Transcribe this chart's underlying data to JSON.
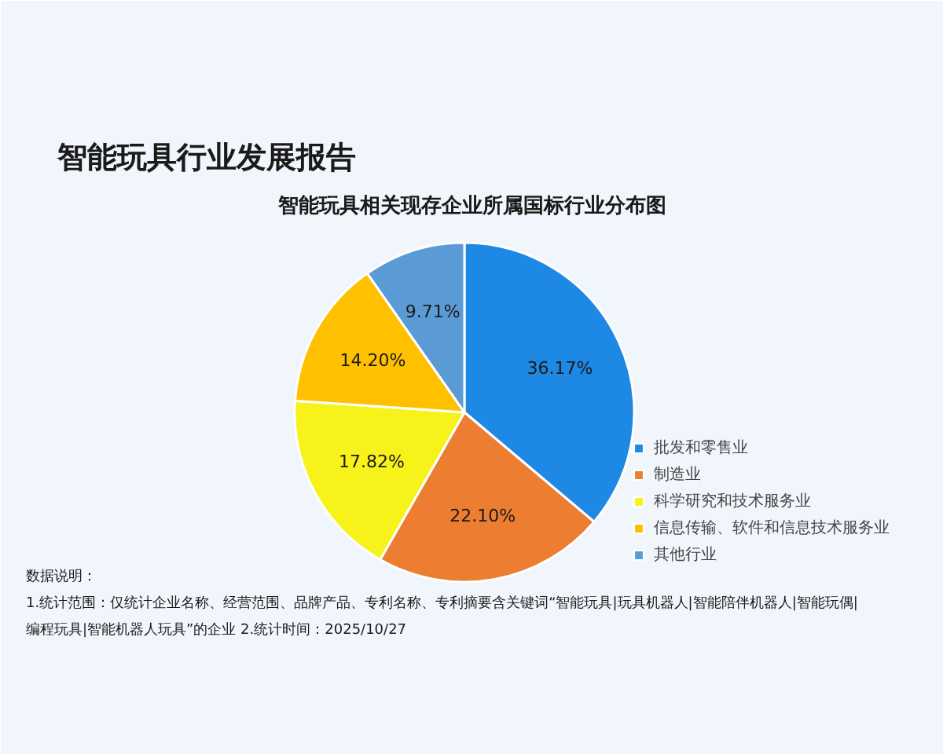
{
  "chart_data": {
    "type": "pie",
    "title": "智能玩具行业发展报告",
    "subtitle": "智能玩具相关现存企业所属国标行业分布图",
    "categories": [
      "批发和零售业",
      "制造业",
      "科学研究和技术服务业",
      "信息传输、软件和信息技术服务业",
      "其他行业"
    ],
    "values": [
      36.17,
      22.1,
      17.82,
      14.2,
      9.71
    ],
    "value_labels": [
      "36.17%",
      "22.10%",
      "17.82%",
      "14.20%",
      "9.71%"
    ],
    "colors": [
      "#1e88e5",
      "#ed7d31",
      "#f7f21a",
      "#ffc000",
      "#5b9bd5"
    ],
    "legend": "right",
    "annotations": [
      "数据说明：",
      "1.统计范围：仅统计企业名称、经营范围、品牌产品、专利名称、专利摘要含关键词“智能玩具|玩具机器人|智能陪伴机器人|智能玩偶|编程玩具|智能机器人玩具”的企业 2.统计时间：2025/10/27"
    ]
  }
}
